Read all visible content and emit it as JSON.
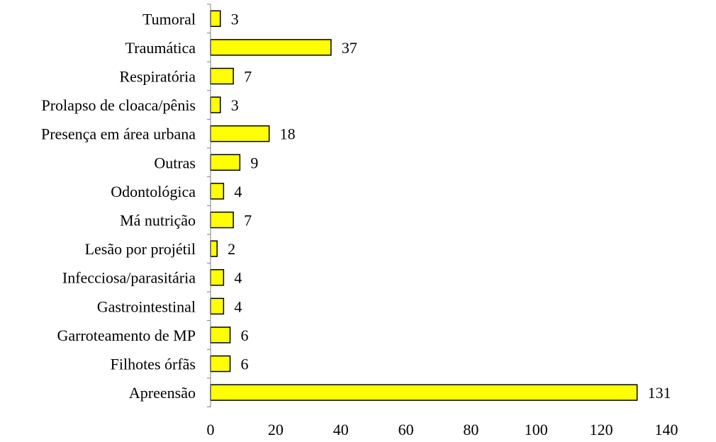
{
  "chart_data": {
    "type": "bar",
    "orientation": "horizontal",
    "categories": [
      "Tumoral",
      "Traumática",
      "Respiratória",
      "Prolapso de cloaca/pênis",
      "Presença em área urbana",
      "Outras",
      "Odontológica",
      "Má nutrição",
      "Lesão por projétil",
      "Infecciosa/parasitária",
      "Gastrointestinal",
      "Garroteamento de MP",
      "Filhotes órfãs",
      "Apreensão"
    ],
    "values": [
      3,
      37,
      7,
      3,
      18,
      9,
      4,
      7,
      2,
      4,
      4,
      6,
      6,
      131
    ],
    "data_labels": [
      "3",
      "37",
      "7",
      "3",
      "18",
      "9",
      "4",
      "7",
      "2",
      "4",
      "4",
      "6",
      "6",
      "131"
    ],
    "title": "",
    "xlabel": "",
    "ylabel": "",
    "xlim": [
      0,
      140
    ],
    "x_ticks": [
      0,
      20,
      40,
      60,
      80,
      100,
      120,
      140
    ],
    "x_tick_labels": [
      "0",
      "20",
      "40",
      "60",
      "80",
      "100",
      "120",
      "140"
    ],
    "grid": false,
    "legend": "none",
    "colors": {
      "bar_fill": "#FFFF00",
      "bar_stroke": "#000000",
      "axis": "#808080",
      "text": "#000000"
    }
  }
}
